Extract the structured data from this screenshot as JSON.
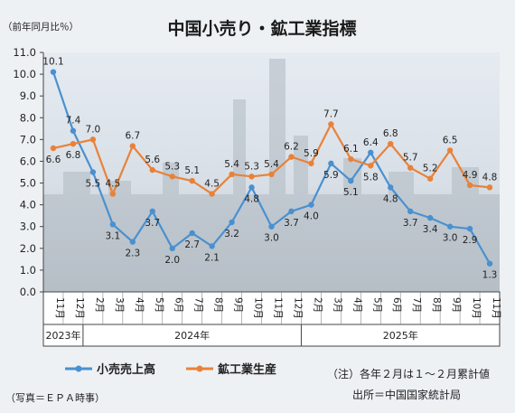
{
  "chart_data": {
    "type": "line",
    "title": "中国小売り・鉱工業指標",
    "unit_label": "（前年同月比％）",
    "ylim": [
      0,
      11
    ],
    "yticks": [
      "0.0",
      "1.0",
      "2.0",
      "3.0",
      "4.0",
      "5.0",
      "6.0",
      "7.0",
      "8.0",
      "9.0",
      "10.0",
      "11.0"
    ],
    "categories": [
      "11月",
      "12月",
      "2月",
      "3月",
      "4月",
      "5月",
      "6月",
      "7月",
      "8月",
      "9月",
      "10月",
      "11月",
      "12月",
      "2月",
      "3月",
      "4月",
      "5月",
      "6月",
      "7月",
      "8月",
      "9月",
      "10月",
      "11月"
    ],
    "year_groups": [
      {
        "label": "2023年",
        "start": 0,
        "end": 1
      },
      {
        "label": "2024年",
        "start": 2,
        "end": 12
      },
      {
        "label": "2025年",
        "start": 13,
        "end": 22
      }
    ],
    "series": [
      {
        "name": "小売売上高",
        "color": "#4a90d0",
        "values": [
          10.1,
          7.4,
          5.5,
          3.1,
          2.3,
          3.7,
          2.0,
          2.7,
          2.1,
          3.2,
          4.8,
          3.0,
          3.7,
          4.0,
          5.9,
          5.1,
          6.4,
          4.8,
          3.7,
          3.4,
          3.0,
          2.9,
          1.3
        ]
      },
      {
        "name": "鉱工業生産",
        "color": "#e8823a",
        "values": [
          6.6,
          6.8,
          7.0,
          4.5,
          6.7,
          5.6,
          5.3,
          5.1,
          4.5,
          5.4,
          5.3,
          5.4,
          6.2,
          5.9,
          7.7,
          6.1,
          5.8,
          6.8,
          5.7,
          5.2,
          6.5,
          4.9,
          4.8
        ]
      }
    ],
    "legend_position": "bottom",
    "grid": false
  },
  "footer": {
    "note": "（注）各年２月は１～２月累計値",
    "source": "出所＝中国国家統計局",
    "credit": "（写真＝ＥＰＡ時事）"
  }
}
